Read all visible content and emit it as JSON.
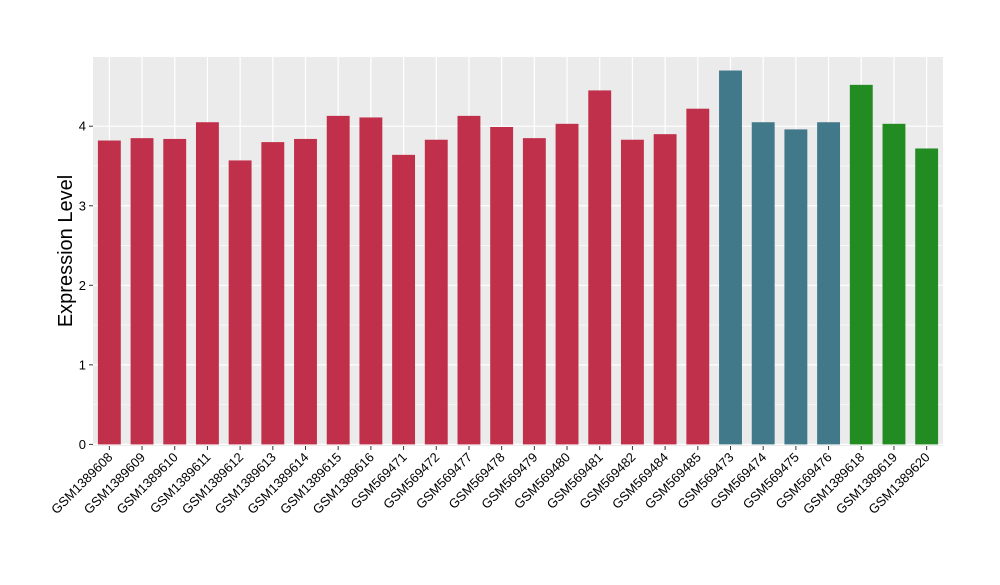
{
  "chart_data": {
    "type": "bar",
    "title": "",
    "xlabel": "",
    "ylabel": "Expression Level",
    "ylim": [
      -0.02,
      4.87
    ],
    "yticks": [
      0,
      1,
      2,
      3,
      4
    ],
    "grid": true,
    "categories": [
      "GSM1389608",
      "GSM1389609",
      "GSM1389610",
      "GSM1389611",
      "GSM1389612",
      "GSM1389613",
      "GSM1389614",
      "GSM1389615",
      "GSM1389616",
      "GSM569471",
      "GSM569472",
      "GSM569477",
      "GSM569478",
      "GSM569479",
      "GSM569480",
      "GSM569481",
      "GSM569482",
      "GSM569484",
      "GSM569485",
      "GSM569473",
      "GSM569474",
      "GSM569475",
      "GSM569476",
      "GSM1389618",
      "GSM1389619",
      "GSM1389620"
    ],
    "values": [
      3.82,
      3.85,
      3.84,
      4.05,
      3.57,
      3.8,
      3.84,
      4.13,
      4.11,
      3.64,
      3.83,
      4.13,
      3.99,
      3.85,
      4.03,
      4.45,
      3.83,
      3.9,
      4.22,
      4.7,
      4.05,
      3.96,
      4.05,
      4.52,
      4.03,
      3.72
    ],
    "bar_colors": [
      "#C0304A",
      "#C0304A",
      "#C0304A",
      "#C0304A",
      "#C0304A",
      "#C0304A",
      "#C0304A",
      "#C0304A",
      "#C0304A",
      "#C0304A",
      "#C0304A",
      "#C0304A",
      "#C0304A",
      "#C0304A",
      "#C0304A",
      "#C0304A",
      "#C0304A",
      "#C0304A",
      "#C0304A",
      "#41788A",
      "#41788A",
      "#41788A",
      "#41788A",
      "#228B22",
      "#228B22",
      "#228B22"
    ],
    "panel_background": "#EBEBEB",
    "grid_color": "#FFFFFF"
  }
}
